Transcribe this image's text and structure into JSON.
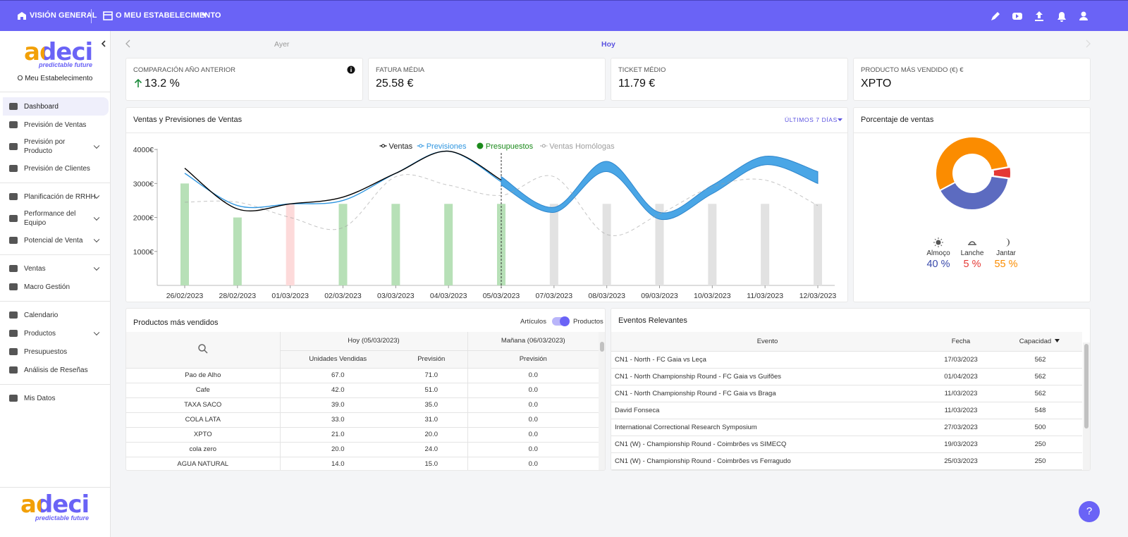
{
  "topbar": {
    "overview": "VISIÓN GENERAL",
    "establishment": "O MEU ESTABELECIMENTO"
  },
  "sidebar": {
    "logo": "adeci",
    "tagline": "predictable future",
    "establishment": "O Meu Estabelecimento",
    "groups": [
      [
        {
          "label": "Dashboard",
          "expandable": false,
          "active": true
        },
        {
          "label": "Previsión de Ventas",
          "expandable": false
        },
        {
          "label": "Previsión por Producto",
          "expandable": true
        },
        {
          "label": "Previsión de Clientes",
          "expandable": false
        }
      ],
      [
        {
          "label": "Planificación de RRHH",
          "expandable": true
        },
        {
          "label": "Performance del Equipo",
          "expandable": true
        },
        {
          "label": "Potencial de Venta",
          "expandable": true
        }
      ],
      [
        {
          "label": "Ventas",
          "expandable": true
        },
        {
          "label": "Macro Gestión",
          "expandable": false
        }
      ],
      [
        {
          "label": "Calendario",
          "expandable": false
        },
        {
          "label": "Productos",
          "expandable": true
        },
        {
          "label": "Presupuestos",
          "expandable": false
        },
        {
          "label": "Análisis de Reseñas",
          "expandable": false
        }
      ],
      [
        {
          "label": "Mis Datos",
          "expandable": false
        }
      ]
    ],
    "footer_logo": "adeci",
    "footer_tagline": "predictable future"
  },
  "date_nav": {
    "previous": "Ayer",
    "current": "Hoy"
  },
  "kpis": [
    {
      "label": "COMPARACIÓN AÑO ANTERIOR",
      "value": "13.2 %"
    },
    {
      "label": "FATURA MÉDIA",
      "value": "25.58 €"
    },
    {
      "label": "TICKET MÉDIO",
      "value": "11.79 €"
    },
    {
      "label": "PRODUCTO MÁS VENDIDO (€) €",
      "value": "XPTO"
    }
  ],
  "sales_chart": {
    "type": "line",
    "title": "Ventas y Previsiones de Ventas",
    "range_selector": "ÚLTIMOS 7 DÍAS",
    "categories": [
      "26/02/2023",
      "28/02/2023",
      "01/03/2023",
      "02/03/2023",
      "03/03/2023",
      "04/03/2023",
      "05/03/2023",
      "07/03/2023",
      "08/03/2023",
      "09/03/2023",
      "10/03/2023",
      "11/03/2023",
      "12/03/2023"
    ],
    "ylim": [
      0,
      4200
    ],
    "yticks": [
      {
        "value": 1000,
        "label": "1000€"
      },
      {
        "value": 2000,
        "label": "2000€"
      },
      {
        "value": 3000,
        "label": "3000€"
      },
      {
        "value": 4000,
        "label": "4000€"
      }
    ],
    "series": [
      {
        "name": "Ventas",
        "color": "#000000",
        "values": [
          3450,
          2250,
          2400,
          2600,
          3300,
          3950,
          3100,
          null,
          null,
          null,
          null,
          null,
          null
        ]
      },
      {
        "name": "Previsiones",
        "color": "#2f96e0",
        "values": [
          3300,
          2350,
          2400,
          2500,
          3300,
          3950,
          3050,
          null,
          null,
          null,
          null,
          null,
          null
        ],
        "band_upper": [
          null,
          null,
          null,
          null,
          null,
          null,
          3200,
          2300,
          3650,
          2150,
          2950,
          3800,
          3350
        ],
        "band_lower": [
          null,
          null,
          null,
          null,
          null,
          null,
          2950,
          2150,
          3350,
          1950,
          2700,
          3550,
          3000
        ]
      },
      {
        "name": "Presupuestos",
        "color": "#1b8a1b",
        "values": [
          3000,
          2000,
          2400,
          2400,
          2400,
          2400,
          2400,
          2400,
          2400,
          2400,
          2400,
          2400,
          2400
        ],
        "bar_colors": [
          "#b7e0b7",
          "#b7e0b7",
          "#fddada",
          "#b7e0b7",
          "#b7e0b7",
          "#b7e0b7",
          "#b7e0b7",
          "#e2e2e2",
          "#e2e2e2",
          "#e2e2e2",
          "#e2e2e2",
          "#e2e2e2",
          "#e2e2e2"
        ]
      },
      {
        "name": "Ventas Homólogas",
        "color": "#9e9e9e",
        "values": [
          2450,
          2450,
          2000,
          1700,
          3200,
          2950,
          2650,
          3200,
          1500,
          2100,
          2900,
          3100,
          2350
        ]
      }
    ]
  },
  "sales_share": {
    "type": "pie",
    "title": "Porcentaje de ventas",
    "categories": [
      "Almoço",
      "Lanche",
      "Jantar"
    ],
    "values": [
      40,
      5,
      55
    ],
    "value_labels": [
      "40 %",
      "5 %",
      "55 %"
    ],
    "colors": [
      "#5c6bc0",
      "#e53935",
      "#fb8c00"
    ]
  },
  "products": {
    "title": "Productos más vendidos",
    "toggle_left": "Artículos",
    "toggle_right": "Productos",
    "group_today": "Hoy (05/03/2023)",
    "group_tomorrow": "Mañana (06/03/2023)",
    "columns": [
      "Unidades Vendidas",
      "Previsión",
      "Previsión"
    ],
    "rows": [
      [
        "Pao de Alho",
        "67.0",
        "71.0",
        "0.0"
      ],
      [
        "Cafe",
        "42.0",
        "51.0",
        "0.0"
      ],
      [
        "TAXA SACO",
        "39.0",
        "35.0",
        "0.0"
      ],
      [
        "COLA LATA",
        "33.0",
        "31.0",
        "0.0"
      ],
      [
        "XPTO",
        "21.0",
        "20.0",
        "0.0"
      ],
      [
        "cola zero",
        "20.0",
        "24.0",
        "0.0"
      ],
      [
        "AGUA NATURAL",
        "14.0",
        "15.0",
        "0.0"
      ]
    ]
  },
  "events": {
    "title": "Eventos Relevantes",
    "columns": [
      "Evento",
      "Fecha",
      "Capacidad"
    ],
    "rows": [
      [
        "CN1 - North - FC Gaia vs Leça",
        "17/03/2023",
        "562"
      ],
      [
        "CN1 - North Championship Round - FC Gaia vs Guifões",
        "01/04/2023",
        "562"
      ],
      [
        "CN1 - North Championship Round - FC Gaia vs Braga",
        "11/03/2023",
        "562"
      ],
      [
        "David Fonseca",
        "11/03/2023",
        "548"
      ],
      [
        "International Correctional Research Symposium",
        "27/03/2023",
        "500"
      ],
      [
        "CN1 (W) - Championship Round - Coimbrões vs SIMECQ",
        "19/03/2023",
        "250"
      ],
      [
        "CN1 (W) - Championship Round - Coimbrões vs Ferragudo",
        "25/03/2023",
        "250"
      ]
    ]
  },
  "help": "?"
}
